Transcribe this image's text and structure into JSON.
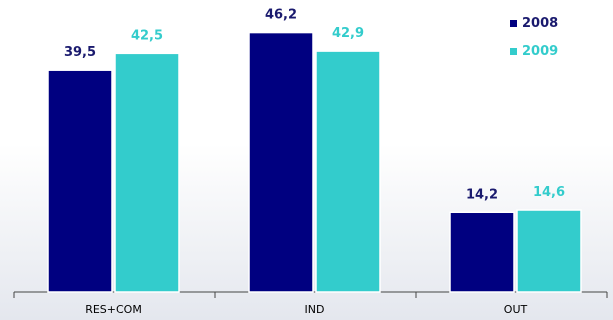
{
  "chart_data": {
    "type": "bar",
    "categories": [
      "RES+COM",
      "IND",
      "OUT"
    ],
    "series": [
      {
        "name": "2008",
        "values": [
          39.5,
          46.2,
          14.2
        ],
        "color": "#000080",
        "label_color": "#1a1a6e"
      },
      {
        "name": "2009",
        "values": [
          42.5,
          42.9,
          14.6
        ],
        "color": "#33cccc",
        "label_color": "#33cccc"
      }
    ],
    "data_labels": [
      [
        "39,5",
        "46,2",
        "14,2"
      ],
      [
        "42,5",
        "42,9",
        "14,6"
      ]
    ],
    "title": "",
    "xlabel": "",
    "ylabel": "",
    "ylim": [
      0,
      52
    ],
    "grid": false,
    "legend": "top-right"
  }
}
